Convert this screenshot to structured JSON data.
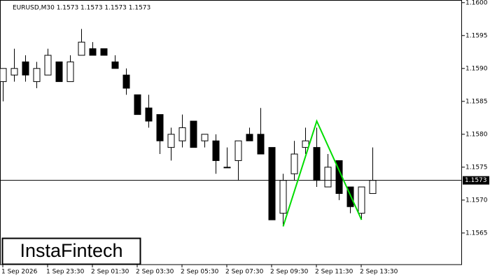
{
  "chart_data": {
    "type": "candlestick",
    "title": "EURUSD,M30  1.1573 1.1573 1.1573 1.1573",
    "logo": "InstaFintech",
    "categories": [
      "1 Sep 2026",
      null,
      null,
      null,
      "1 Sep 23:30",
      null,
      null,
      null,
      "2 Sep 01:30",
      null,
      null,
      null,
      "2 Sep 03:30",
      null,
      null,
      null,
      "2 Sep 05:30",
      null,
      null,
      null,
      "2 Sep 07:30",
      null,
      null,
      null,
      "2 Sep 09:30",
      null,
      null,
      null,
      "2 Sep 11:30",
      null,
      null,
      null,
      "2 Sep 13:30",
      null
    ],
    "open": [
      1.1588,
      1.1589,
      1.1591,
      1.1588,
      1.1589,
      1.1591,
      1.1588,
      1.1592,
      1.1593,
      1.1593,
      1.1591,
      1.1589,
      1.1586,
      1.1584,
      1.1583,
      1.1578,
      1.1579,
      1.1582,
      1.1579,
      1.1579,
      1.1575,
      1.1576,
      1.158,
      1.158,
      1.1578,
      1.1568,
      1.1574,
      1.1578,
      1.1578,
      1.1572,
      1.1576,
      1.1572,
      1.1568,
      1.1571
    ],
    "high": [
      1.159,
      1.1593,
      1.1592,
      1.1591,
      1.1593,
      1.1591,
      1.1592,
      1.1596,
      1.1594,
      1.1593,
      1.1592,
      1.159,
      1.1586,
      1.1586,
      1.1583,
      1.1581,
      1.1583,
      1.1582,
      1.158,
      1.158,
      1.1578,
      1.1579,
      1.1581,
      1.1584,
      1.1578,
      1.1574,
      1.1579,
      1.1581,
      1.1581,
      1.1577,
      1.1576,
      1.1572,
      1.1572,
      1.1578
    ],
    "low": [
      1.1585,
      1.1588,
      1.1588,
      1.1587,
      1.1589,
      1.1588,
      1.1588,
      1.1592,
      1.1592,
      1.1592,
      1.159,
      1.1586,
      1.1583,
      1.1581,
      1.1577,
      1.1576,
      1.1578,
      1.1578,
      1.1578,
      1.1574,
      1.1575,
      1.1573,
      1.1579,
      1.1577,
      1.1567,
      1.1566,
      1.1573,
      1.1577,
      1.1572,
      1.1572,
      1.157,
      1.1568,
      1.1567,
      1.1571
    ],
    "close": [
      1.159,
      1.159,
      1.1589,
      1.159,
      1.1592,
      1.1588,
      1.1591,
      1.1594,
      1.1592,
      1.1592,
      1.159,
      1.1587,
      1.1583,
      1.1582,
      1.1579,
      1.158,
      1.1581,
      1.1578,
      1.158,
      1.1576,
      1.1575,
      1.1579,
      1.1579,
      1.1577,
      1.1567,
      1.1573,
      1.1577,
      1.1579,
      1.1573,
      1.1575,
      1.1571,
      1.1569,
      1.1572,
      1.1573
    ],
    "last_price": 1.1573,
    "pattern_line": {
      "x": [
        25,
        28,
        32
      ],
      "values": [
        1.1566,
        1.1582,
        1.1567
      ],
      "color": "#00dd00"
    },
    "up_color": "#ffffff",
    "down_color": "#000000",
    "ylim": [
      1.15602,
      1.16004
    ],
    "yticks": [
      {
        "value": 1.1565,
        "label": "1.1565"
      },
      {
        "value": 1.157,
        "label": "1.1570"
      },
      {
        "value": 1.1575,
        "label": "1.1575"
      },
      {
        "value": 1.158,
        "label": "1.1580"
      },
      {
        "value": 1.1585,
        "label": "1.1585"
      },
      {
        "value": 1.159,
        "label": "1.1590"
      },
      {
        "value": 1.1595,
        "label": "1.1595"
      },
      {
        "value": 1.16,
        "label": "1.1600"
      }
    ]
  }
}
